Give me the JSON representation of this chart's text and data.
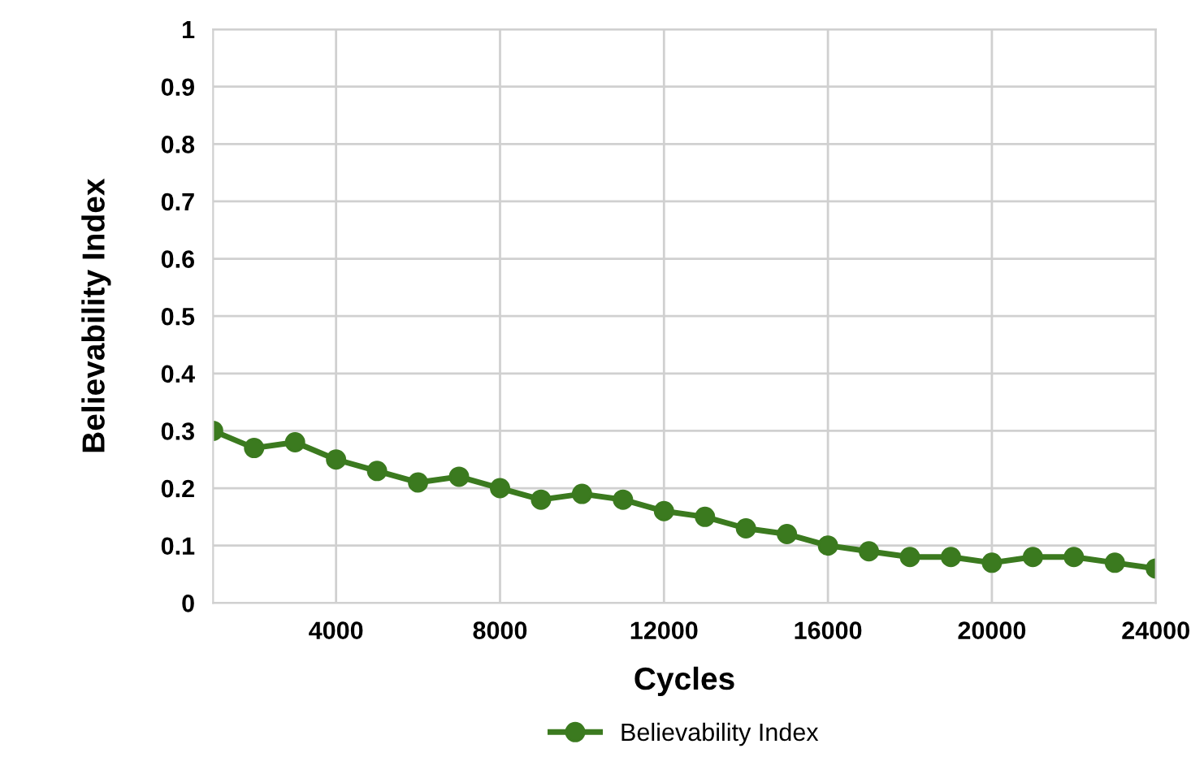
{
  "chart_data": {
    "type": "line",
    "xlabel": "Cycles",
    "ylabel": "Believability Index",
    "x": [
      1000,
      2000,
      3000,
      4000,
      5000,
      6000,
      7000,
      8000,
      9000,
      10000,
      11000,
      12000,
      13000,
      14000,
      15000,
      16000,
      17000,
      18000,
      19000,
      20000,
      21000,
      22000,
      23000,
      24000
    ],
    "series": [
      {
        "name": "Believability Index",
        "color": "#3b7a1f",
        "values": [
          0.3,
          0.27,
          0.28,
          0.25,
          0.23,
          0.21,
          0.22,
          0.2,
          0.18,
          0.19,
          0.18,
          0.16,
          0.15,
          0.13,
          0.12,
          0.1,
          0.09,
          0.08,
          0.08,
          0.07,
          0.08,
          0.08,
          0.07,
          0.06
        ]
      }
    ],
    "xlim": [
      1000,
      24000
    ],
    "xticks": [
      4000,
      8000,
      12000,
      16000,
      20000,
      24000
    ],
    "ylim": [
      0,
      1
    ],
    "yticks": [
      0,
      0.1,
      0.2,
      0.3,
      0.4,
      0.5,
      0.6,
      0.7,
      0.8,
      0.9,
      1
    ],
    "grid": true,
    "legend": "bottom",
    "marker": "circle",
    "line_style": "solid"
  }
}
